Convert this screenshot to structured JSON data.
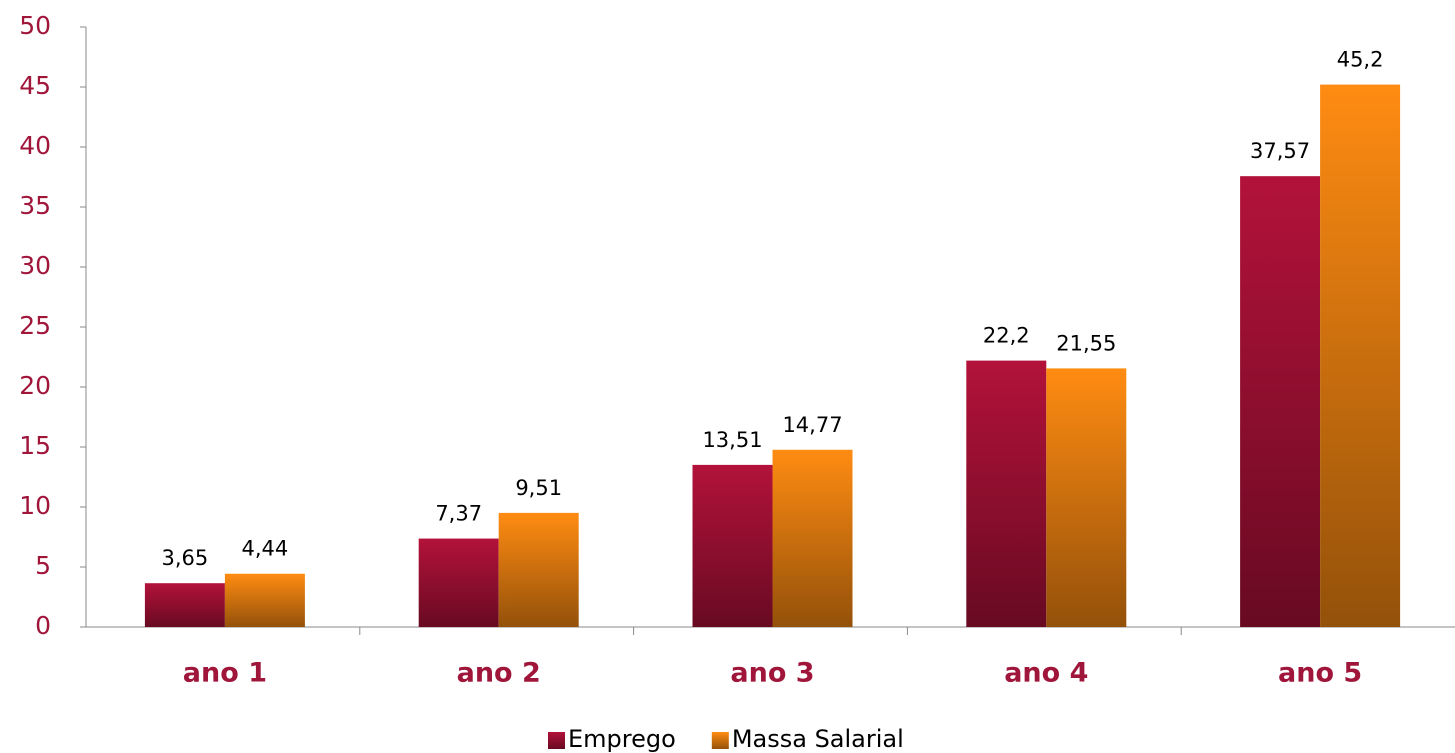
{
  "chart_data": {
    "type": "bar",
    "categories": [
      "ano 1",
      "ano 2",
      "ano 3",
      "ano 4",
      "ano 5"
    ],
    "series": [
      {
        "name": "Emprego",
        "color": "#b3123a",
        "values": [
          3.65,
          7.37,
          13.51,
          22.2,
          37.57
        ],
        "value_labels": [
          "3,65",
          "7,37",
          "13,51",
          "22,2",
          "37,57"
        ]
      },
      {
        "name": "Massa Salarial",
        "color": "#ff8c12",
        "values": [
          4.44,
          9.51,
          14.77,
          21.55,
          45.2
        ],
        "value_labels": [
          "4,44",
          "9,51",
          "14,77",
          "21,55",
          "45,2"
        ]
      }
    ],
    "ylim": [
      0,
      50
    ],
    "yticks": [
      0,
      5,
      10,
      15,
      20,
      25,
      30,
      35,
      40,
      45,
      50
    ],
    "grid": false,
    "legend": "bottom"
  }
}
